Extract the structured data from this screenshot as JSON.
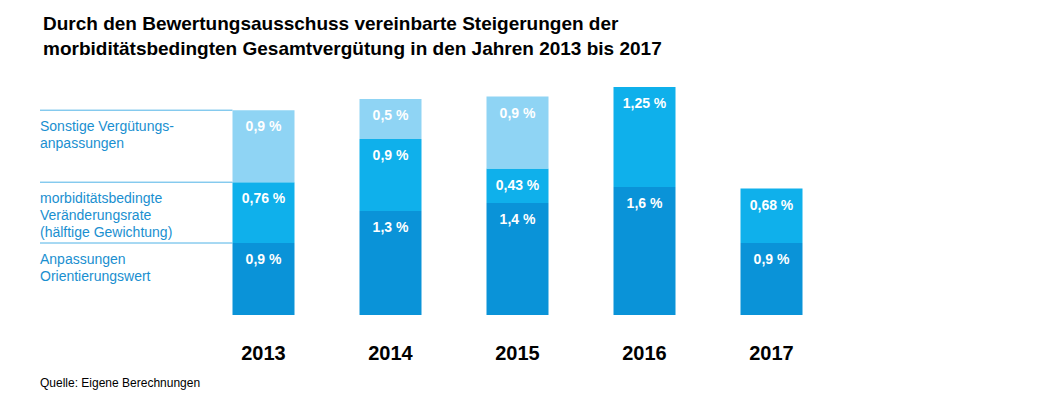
{
  "chart_data": {
    "type": "bar",
    "title": "Durch den Bewertungsausschuss vereinbarte Steigerungen der\nmorbiditätsbedingten Gesamtvergütung in den Jahren 2013 bis 2017",
    "source": "Quelle: Eigene Berechnungen",
    "categories": [
      "2013",
      "2014",
      "2015",
      "2016",
      "2017"
    ],
    "series": [
      {
        "name": "Anpassungen\nOrientierungswert",
        "color": "#0a93d8",
        "values": [
          0.9,
          1.3,
          1.4,
          1.6,
          0.9
        ],
        "value_labels": [
          "0,9 %",
          "1,3 %",
          "1,4 %",
          "1,6 %",
          "0,9 %"
        ]
      },
      {
        "name": "morbiditätsbedingte\nVeränderungsrate\n(hälftige Gewichtung)",
        "color": "#0fb0eb",
        "values": [
          0.76,
          0.9,
          0.43,
          1.25,
          0.68
        ],
        "value_labels": [
          "0,76 %",
          "0,9 %",
          "0,43 %",
          "1,25 %",
          "0,68 %"
        ]
      },
      {
        "name": "Sonstige Vergütungs-\nanpassungen",
        "color": "#8fd4f4",
        "values": [
          0.9,
          0.5,
          0.9,
          null,
          null
        ],
        "value_labels": [
          "0,9 %",
          "0,5 %",
          "0,9 %",
          null,
          null
        ]
      }
    ],
    "stacked": true,
    "data_labels": true,
    "tick_labels": "x",
    "grid": false,
    "ylim": [
      0,
      3
    ]
  }
}
